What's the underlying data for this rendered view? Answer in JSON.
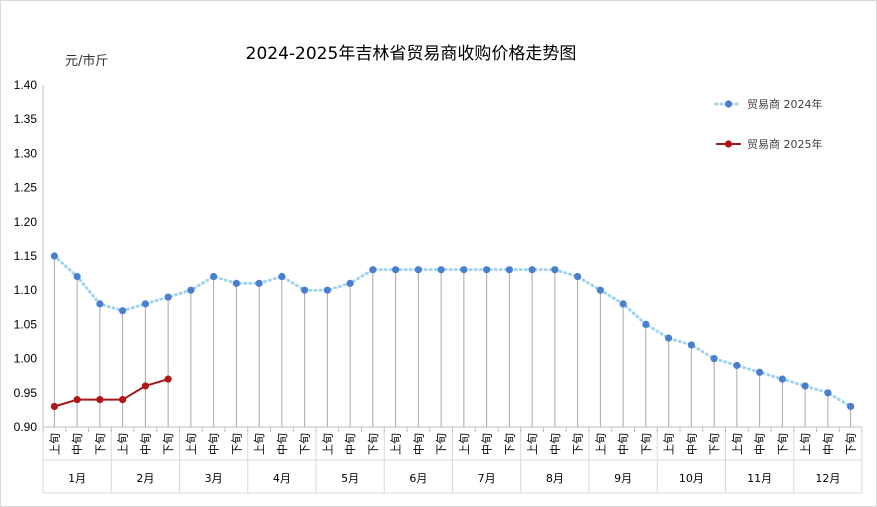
{
  "chart_data": {
    "type": "line",
    "title": "2024-2025年吉林省贸易商收购价格走势图",
    "unit_label": "元/市斤",
    "ylim": [
      0.9,
      1.4
    ],
    "yticks": [
      "0.90",
      "0.95",
      "1.00",
      "1.05",
      "1.10",
      "1.15",
      "1.20",
      "1.25",
      "1.30",
      "1.35",
      "1.40"
    ],
    "dekad_labels": [
      "上旬",
      "中旬",
      "下旬"
    ],
    "months": [
      "1月",
      "2月",
      "3月",
      "4月",
      "5月",
      "6月",
      "7月",
      "8月",
      "9月",
      "10月",
      "11月",
      "12月"
    ],
    "legend_position": "top-right",
    "grid": false,
    "series": [
      {
        "name": "贸易商 2024年",
        "color": "#4a7fd0",
        "line_color": "#9fd3f0",
        "style": "dotted",
        "values": [
          1.15,
          1.12,
          1.08,
          1.07,
          1.08,
          1.09,
          1.1,
          1.12,
          1.11,
          1.11,
          1.12,
          1.1,
          1.1,
          1.11,
          1.13,
          1.13,
          1.13,
          1.13,
          1.13,
          1.13,
          1.13,
          1.13,
          1.13,
          1.12,
          1.1,
          1.08,
          1.05,
          1.03,
          1.02,
          1.0,
          0.99,
          0.98,
          0.97,
          0.96,
          0.95,
          0.93
        ]
      },
      {
        "name": "贸易商 2025年",
        "color": "#b01717",
        "line_color": "#a31a1a",
        "style": "solid",
        "values": [
          0.93,
          0.94,
          0.94,
          0.94,
          0.96,
          0.97
        ]
      }
    ]
  }
}
